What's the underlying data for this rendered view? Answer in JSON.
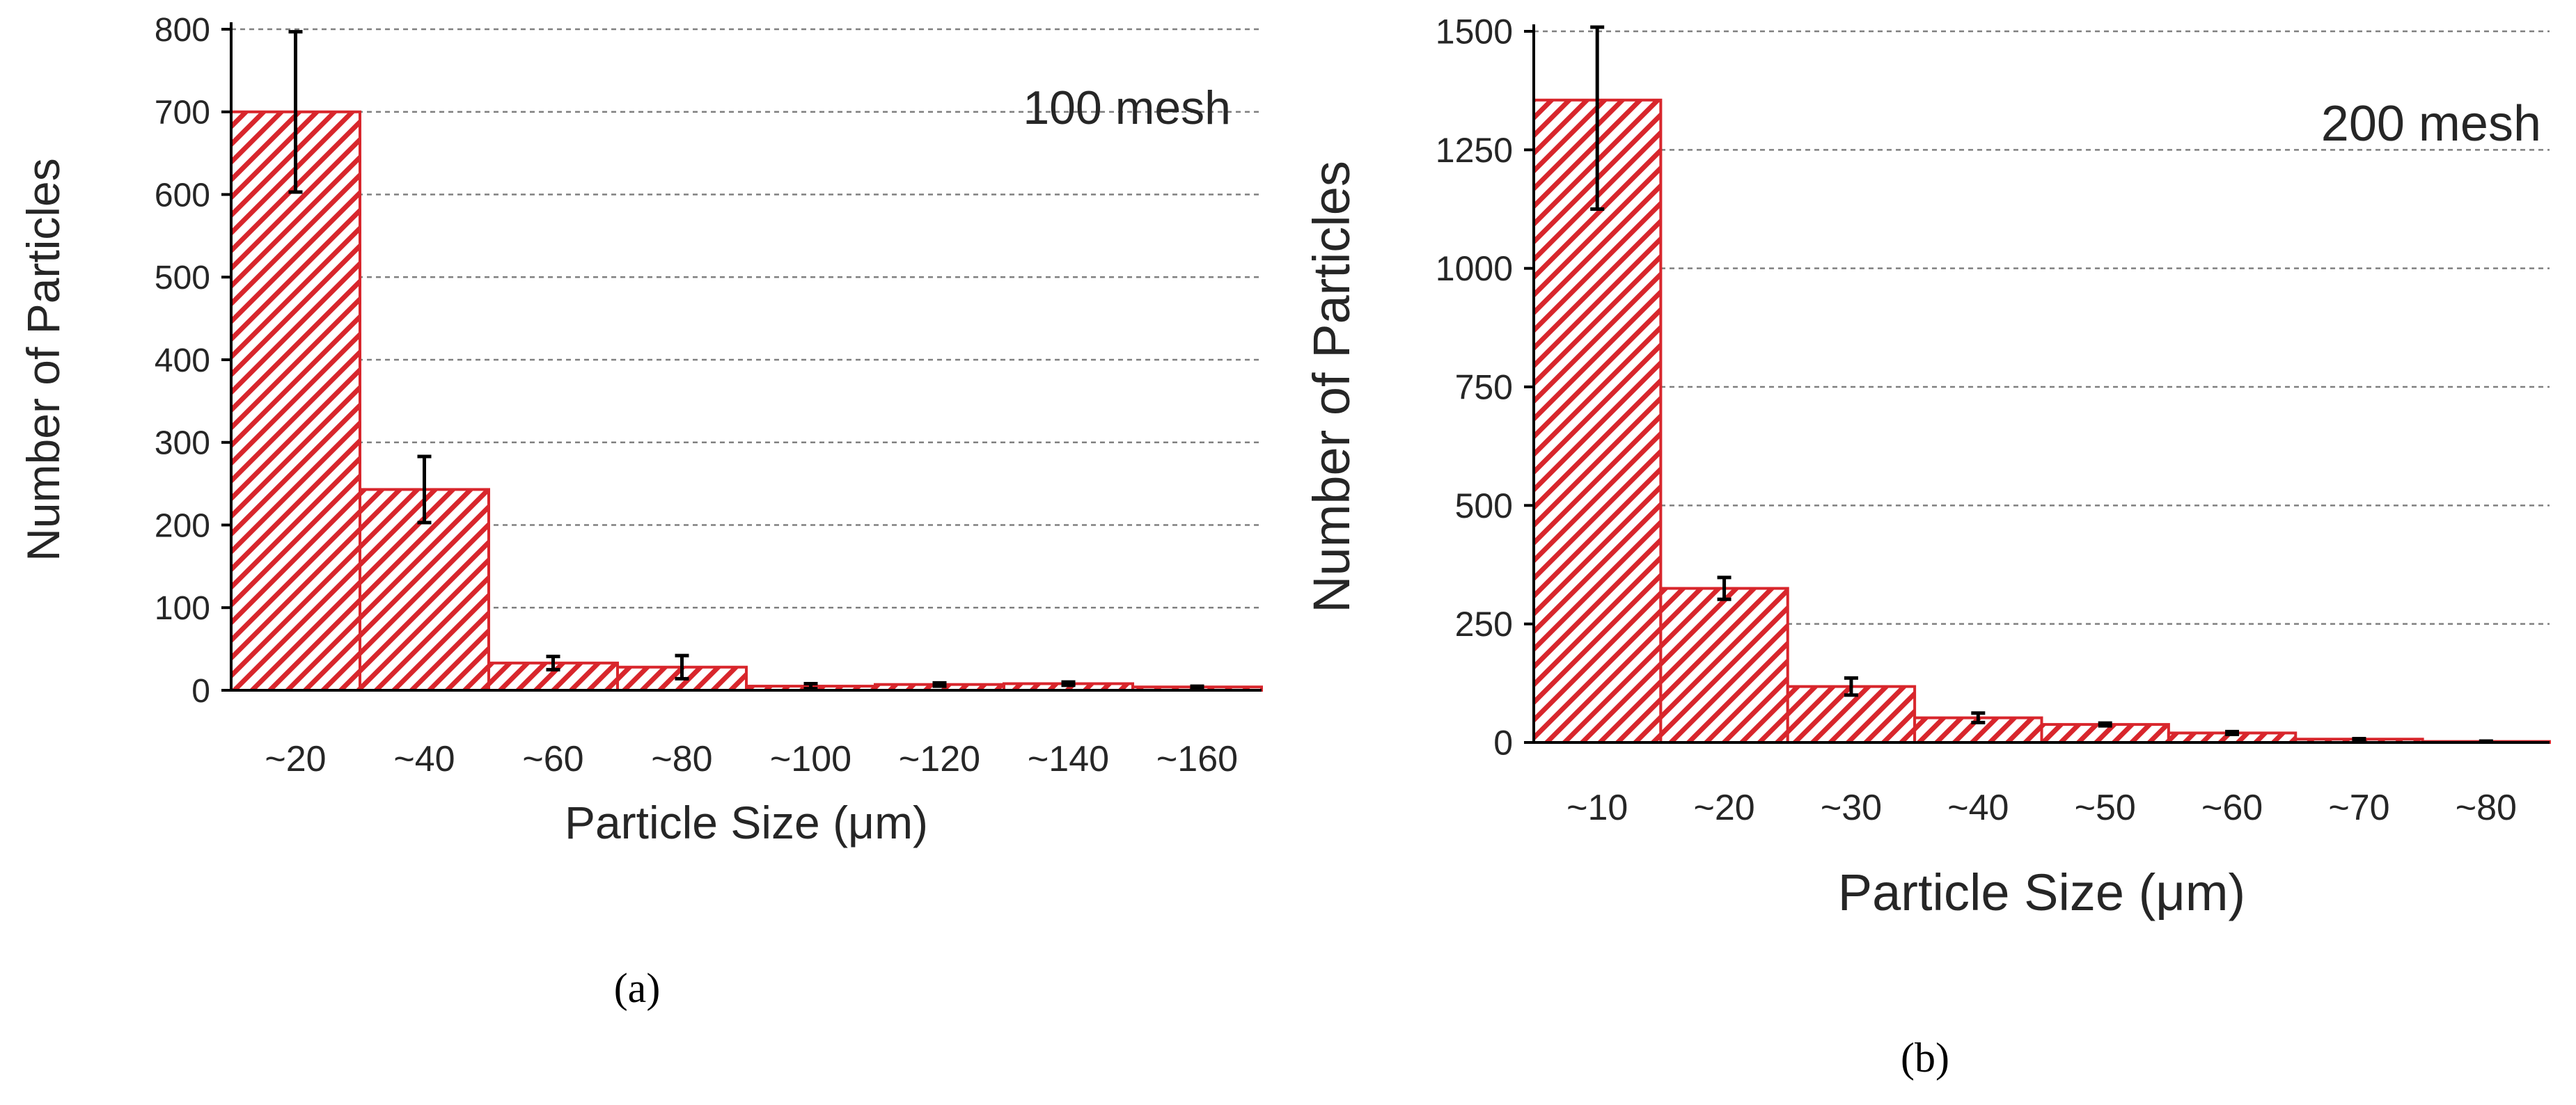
{
  "colors": {
    "bar_fill": "#d8262c",
    "bar_stroke": "#d8262c",
    "hatch_bg": "#ffffff",
    "error_bar": "#000000",
    "grid": "#808080",
    "axis": "#000000",
    "text": "#262626"
  },
  "panels": [
    {
      "label": "(a)"
    },
    {
      "label": "(b)"
    }
  ],
  "chart_data": [
    {
      "type": "bar",
      "annotation": "100 mesh",
      "xlabel": "Particle Size (μm)",
      "ylabel": "Number of Particles",
      "categories": [
        "~20",
        "~40",
        "~60",
        "~80",
        "~100",
        "~120",
        "~140",
        "~160"
      ],
      "values": [
        700,
        243,
        33,
        28,
        5,
        7,
        8,
        4
      ],
      "errors": [
        97,
        40,
        8,
        14,
        3,
        2,
        2,
        1
      ],
      "ylim": [
        0,
        800
      ],
      "yticks": [
        0,
        100,
        200,
        300,
        400,
        500,
        600,
        700,
        800
      ],
      "grid": true,
      "bar_pattern": "diagonal-hatch"
    },
    {
      "type": "bar",
      "annotation": "200 mesh",
      "xlabel": "Particle Size (μm)",
      "ylabel": "Number of Particles",
      "categories": [
        "~10",
        "~20",
        "~30",
        "~40",
        "~50",
        "~60",
        "~70",
        "~80"
      ],
      "values": [
        1355,
        325,
        118,
        52,
        38,
        20,
        7,
        2
      ],
      "errors": [
        230,
        23,
        18,
        10,
        3,
        3,
        1,
        1
      ],
      "ylim": [
        0,
        1500
      ],
      "yticks": [
        0,
        250,
        500,
        750,
        1000,
        1250,
        1500
      ],
      "grid": true,
      "bar_pattern": "diagonal-hatch"
    }
  ]
}
